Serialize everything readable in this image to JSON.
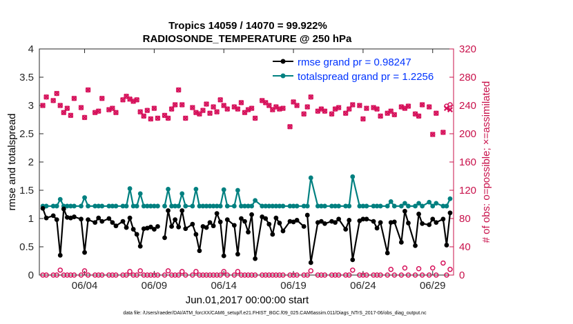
{
  "chart_data": {
    "type": "line",
    "title": "Tropics 14059 / 14070 = 99.922%",
    "subtitle": "RADIOSONDE_TEMPERATURE @ 250 hPa",
    "xlabel": "Jun.01,2017 00:00:00 start",
    "ylabel": "rmse and totalspread",
    "y2label": "# of obs: o=possible; ×=assimilated",
    "footer": "data file: /Users/raeder/DAI/ATM_forcXX/CAM6_setup/f.e21.FHIST_BGC.f09_025.CAM6assim.011/Diags_NTrS_2017-06/obs_diag_output.nc",
    "xlim": [
      0.75,
      30.5
    ],
    "ylim": [
      0,
      4
    ],
    "y2lim": [
      0,
      320
    ],
    "x_tick_values": [
      4,
      9,
      14,
      19,
      24,
      29
    ],
    "x_tick_labels": [
      "06/04",
      "06/09",
      "06/14",
      "06/19",
      "06/24",
      "06/29"
    ],
    "y_tick_values": [
      0,
      0.5,
      1,
      1.5,
      2,
      2.5,
      3,
      3.5,
      4
    ],
    "y_tick_labels": [
      "0",
      "0.5",
      "1",
      "1.5",
      "2",
      "2.5",
      "3",
      "3.5",
      "4"
    ],
    "y2_tick_values": [
      0,
      40,
      80,
      120,
      160,
      200,
      240,
      280,
      320
    ],
    "y2_tick_labels": [
      "0",
      "40",
      "80",
      "120",
      "160",
      "200",
      "240",
      "280",
      "320"
    ],
    "legend_position": "top-right",
    "colors": {
      "rmse": "#000000",
      "spread": "#008080",
      "obs": "#d6105a",
      "right_axis": "#c8104a",
      "legend_text": "#0033ff"
    },
    "series": [
      {
        "name": "rmse",
        "legend": "rmse grand pr = 0.98247",
        "axis": "left",
        "x": [
          1.0,
          1.25,
          1.75,
          2.0,
          2.25,
          2.5,
          2.75,
          3.0,
          3.25,
          3.75,
          4.0,
          4.25,
          4.75,
          5.0,
          5.25,
          5.75,
          6.0,
          6.25,
          6.75,
          7.0,
          7.25,
          7.5,
          7.75,
          8.0,
          8.25,
          8.5,
          8.75,
          9.0,
          9.25,
          9.75,
          10.0,
          10.25,
          10.5,
          10.75,
          11.0,
          11.25,
          11.75,
          12.0,
          12.25,
          12.5,
          12.75,
          13.0,
          13.25,
          13.5,
          13.75,
          14.0,
          14.25,
          14.75,
          15.0,
          15.25,
          15.5,
          15.75,
          16.0,
          16.25,
          16.75,
          17.0,
          17.25,
          17.5,
          17.75,
          18.0,
          18.25,
          18.75,
          19.0,
          19.25,
          19.75,
          20.0,
          20.25,
          20.75,
          21.0,
          21.25,
          21.75,
          22.0,
          22.25,
          22.75,
          23.0,
          23.25,
          23.75,
          24.0,
          24.25,
          24.75,
          25.0,
          25.25,
          25.75,
          26.0,
          26.25,
          26.75,
          27.0,
          27.25,
          27.75,
          28.0,
          28.25,
          28.75,
          29.0,
          29.25,
          29.75,
          30.0,
          30.25
        ],
        "values": [
          1.18,
          1.01,
          1.05,
          0.98,
          0.35,
          1.17,
          1.02,
          1.01,
          1.03,
          0.99,
          0.4,
          0.98,
          0.93,
          1.01,
          0.95,
          1.0,
          0.93,
          0.87,
          0.95,
          0.84,
          1.01,
          0.81,
          0.72,
          0.51,
          0.82,
          0.83,
          0.85,
          0.81,
          0.86,
          0.66,
          1.14,
          0.86,
          0.98,
          0.85,
          1.14,
          0.82,
          0.9,
          0.72,
          0.43,
          0.86,
          0.84,
          0.93,
          0.87,
          1.09,
          0.94,
          0.34,
          0.98,
          0.88,
          0.37,
          1.0,
          0.95,
          0.76,
          1.07,
          0.29,
          1.03,
          1.0,
          0.9,
          0.72,
          1.01,
          0.92,
          0.78,
          0.95,
          0.94,
          0.97,
          0.86,
          1.06,
          0.22,
          0.93,
          0.95,
          0.91,
          0.95,
          0.93,
          0.99,
          0.81,
          0.97,
          0.27,
          0.96,
          0.99,
          0.99,
          0.95,
          0.83,
          0.93,
          0.39,
          0.93,
          0.94,
          0.58,
          1.13,
          0.92,
          0.52,
          1.08,
          0.91,
          0.89,
          0.99,
          0.93,
          0.99,
          0.53,
          1.1
        ],
        "line_segments": [
          [
            0,
            28
          ],
          [
            29,
            64
          ],
          [
            65,
            96
          ]
        ]
      },
      {
        "name": "totalspread",
        "legend": "totalspread grand pr = 1.2256",
        "axis": "left",
        "x": [
          1.0,
          1.25,
          1.75,
          2.0,
          2.25,
          2.5,
          2.75,
          3.0,
          3.25,
          3.75,
          4.0,
          4.25,
          4.75,
          5.0,
          5.25,
          5.75,
          6.0,
          6.25,
          6.75,
          7.0,
          7.25,
          7.5,
          7.75,
          8.0,
          8.25,
          8.5,
          8.75,
          9.0,
          9.25,
          9.75,
          10.0,
          10.25,
          10.5,
          10.75,
          11.0,
          11.25,
          11.75,
          12.0,
          12.25,
          12.5,
          12.75,
          13.0,
          13.25,
          13.5,
          13.75,
          14.0,
          14.25,
          14.75,
          15.0,
          15.25,
          15.5,
          15.75,
          16.0,
          16.25,
          16.75,
          17.0,
          17.25,
          17.5,
          17.75,
          18.0,
          18.25,
          18.75,
          19.0,
          19.25,
          19.75,
          20.0,
          20.25,
          20.75,
          21.0,
          21.25,
          21.75,
          22.0,
          22.25,
          22.75,
          23.0,
          23.25,
          23.75,
          24.0,
          24.25,
          24.75,
          25.0,
          25.25,
          25.75,
          26.0,
          26.25,
          26.75,
          27.0,
          27.25,
          27.75,
          28.0,
          28.25,
          28.75,
          29.0,
          29.25,
          29.75,
          30.0,
          30.25
        ],
        "values": [
          1.22,
          1.22,
          1.22,
          1.22,
          1.34,
          1.22,
          1.22,
          1.22,
          1.22,
          1.22,
          1.37,
          1.22,
          1.22,
          1.22,
          1.22,
          1.22,
          1.22,
          1.22,
          1.22,
          1.22,
          1.53,
          1.22,
          1.22,
          1.44,
          1.22,
          1.22,
          1.22,
          1.22,
          1.22,
          1.22,
          1.52,
          1.22,
          1.22,
          1.22,
          1.44,
          1.22,
          1.22,
          1.52,
          1.22,
          1.22,
          1.22,
          1.22,
          1.22,
          1.22,
          1.22,
          1.51,
          1.22,
          1.22,
          1.5,
          1.22,
          1.22,
          1.22,
          1.22,
          1.32,
          1.22,
          1.22,
          1.22,
          1.22,
          1.22,
          1.22,
          1.22,
          1.22,
          1.22,
          1.22,
          1.22,
          1.22,
          1.72,
          1.22,
          1.22,
          1.22,
          1.22,
          1.22,
          1.22,
          1.22,
          1.22,
          1.74,
          1.22,
          1.22,
          1.22,
          1.22,
          1.22,
          1.22,
          1.22,
          1.3,
          1.22,
          1.22,
          1.27,
          1.22,
          1.22,
          1.27,
          1.22,
          1.29,
          1.22,
          1.27,
          1.22,
          1.22,
          1.35
        ],
        "line_segments": [
          [
            0,
            28
          ],
          [
            29,
            64
          ],
          [
            65,
            96
          ]
        ]
      },
      {
        "name": "obs possible",
        "legend": "",
        "axis": "right",
        "marker": "circle",
        "x": [
          1.0,
          1.25,
          1.75,
          2.0,
          2.25,
          2.5,
          2.75,
          3.0,
          3.25,
          3.75,
          4.0,
          4.25,
          4.75,
          5.0,
          5.25,
          5.75,
          6.0,
          6.25,
          6.75,
          7.0,
          7.25,
          7.5,
          7.75,
          8.0,
          8.25,
          8.5,
          8.75,
          9.0,
          9.25,
          9.75,
          10.0,
          10.25,
          10.5,
          10.75,
          11.0,
          11.25,
          11.75,
          12.0,
          12.25,
          12.5,
          12.75,
          13.0,
          13.25,
          13.5,
          13.75,
          14.0,
          14.25,
          14.75,
          15.0,
          15.25,
          15.5,
          15.75,
          16.0,
          16.25,
          16.75,
          17.0,
          17.25,
          17.5,
          17.75,
          18.0,
          18.25,
          18.75,
          19.0,
          19.25,
          19.75,
          20.0,
          20.25,
          20.75,
          21.0,
          21.25,
          21.75,
          22.0,
          22.25,
          22.75,
          23.0,
          23.25,
          23.75,
          24.0,
          24.25,
          24.75,
          25.0,
          25.25,
          25.75,
          26.0,
          26.25,
          26.75,
          27.0,
          27.25,
          27.75,
          28.0,
          28.25,
          28.75,
          29.0,
          29.25,
          29.75,
          30.0,
          30.25
        ],
        "values": [
          240,
          252,
          247,
          257,
          240,
          230,
          236,
          226,
          250,
          237,
          223,
          262,
          230,
          232,
          250,
          234,
          236,
          230,
          248,
          253,
          249,
          246,
          248,
          231,
          225,
          233,
          221,
          236,
          222,
          226,
          222,
          235,
          241,
          262,
          241,
          222,
          237,
          230,
          228,
          233,
          242,
          229,
          238,
          231,
          248,
          240,
          235,
          238,
          235,
          244,
          230,
          234,
          236,
          222,
          247,
          244,
          240,
          234,
          238,
          235,
          236,
          210,
          245,
          240,
          228,
          238,
          252,
          232,
          235,
          232,
          228,
          235,
          237,
          229,
          235,
          241,
          240,
          221,
          236,
          237,
          235,
          225,
          229,
          232,
          227,
          238,
          236,
          239,
          228,
          225,
          241,
          238,
          199,
          229,
          202,
          239,
          241
        ],
        "marker_note": "obs possible drawn as circles"
      },
      {
        "name": "obs assimilated",
        "legend": "",
        "axis": "right",
        "marker": "x",
        "x": [
          1.0,
          1.25,
          1.75,
          2.0,
          2.25,
          2.5,
          2.75,
          3.0,
          3.25,
          3.75,
          4.0,
          4.25,
          4.75,
          5.0,
          5.25,
          5.75,
          6.0,
          6.25,
          6.75,
          7.0,
          7.25,
          7.5,
          7.75,
          8.0,
          8.25,
          8.5,
          8.75,
          9.0,
          9.25,
          9.75,
          10.0,
          10.25,
          10.5,
          10.75,
          11.0,
          11.25,
          11.75,
          12.0,
          12.25,
          12.5,
          12.75,
          13.0,
          13.25,
          13.5,
          13.75,
          14.0,
          14.25,
          14.75,
          15.0,
          15.25,
          15.5,
          15.75,
          16.0,
          16.25,
          16.75,
          17.0,
          17.25,
          17.5,
          17.75,
          18.0,
          18.25,
          18.75,
          19.0,
          19.25,
          19.75,
          20.0,
          20.25,
          20.75,
          21.0,
          21.25,
          21.75,
          22.0,
          22.25,
          22.75,
          23.0,
          23.25,
          23.75,
          24.0,
          24.25,
          24.75,
          25.0,
          25.25,
          25.75,
          26.0,
          26.25,
          26.75,
          27.0,
          27.25,
          27.75,
          28.0,
          28.25,
          28.75,
          29.0,
          29.25,
          29.75,
          30.0,
          30.25
        ],
        "values": [
          240,
          252,
          247,
          257,
          240,
          230,
          236,
          226,
          250,
          237,
          223,
          262,
          230,
          232,
          250,
          234,
          236,
          230,
          248,
          253,
          249,
          246,
          248,
          231,
          225,
          233,
          221,
          236,
          222,
          226,
          222,
          235,
          241,
          262,
          241,
          222,
          237,
          230,
          228,
          233,
          242,
          229,
          238,
          231,
          248,
          240,
          235,
          238,
          235,
          244,
          230,
          234,
          236,
          222,
          247,
          244,
          240,
          234,
          238,
          235,
          236,
          210,
          245,
          240,
          228,
          238,
          252,
          232,
          235,
          232,
          228,
          235,
          237,
          229,
          235,
          241,
          240,
          221,
          236,
          237,
          235,
          225,
          229,
          232,
          227,
          238,
          236,
          239,
          228,
          225,
          241,
          238,
          199,
          229,
          202,
          236,
          234
        ]
      },
      {
        "name": "rejected obs possible",
        "legend": "",
        "axis": "right",
        "marker": "circle",
        "x": [
          1.0,
          1.25,
          1.75,
          2.0,
          2.25,
          2.5,
          2.75,
          3.0,
          3.25,
          3.75,
          4.0,
          4.25,
          4.75,
          5.0,
          5.25,
          5.75,
          6.0,
          6.25,
          6.75,
          7.0,
          7.25,
          7.5,
          7.75,
          8.0,
          8.25,
          8.5,
          8.75,
          9.0,
          9.25,
          9.75,
          10.0,
          10.25,
          10.5,
          10.75,
          11.0,
          11.25,
          11.75,
          12.0,
          12.25,
          12.5,
          12.75,
          13.0,
          13.25,
          13.5,
          13.75,
          14.0,
          14.25,
          14.75,
          15.0,
          15.25,
          15.5,
          15.75,
          16.0,
          16.25,
          16.75,
          17.0,
          17.25,
          17.5,
          17.75,
          18.0,
          18.25,
          18.75,
          19.0,
          19.25,
          19.75,
          20.0,
          20.25,
          20.75,
          21.0,
          21.25,
          21.75,
          22.0,
          22.25,
          22.75,
          23.0,
          23.25,
          23.75,
          24.0,
          24.25,
          24.75,
          25.0,
          25.25,
          25.75,
          26.0,
          26.25,
          26.75,
          27.0,
          27.25,
          27.75,
          28.0,
          28.25,
          28.75,
          29.0,
          29.25,
          29.75,
          30.0,
          30.25
        ],
        "values": [
          0,
          0,
          0,
          0,
          7,
          0,
          0,
          0,
          0,
          0,
          6,
          0,
          0,
          0,
          0,
          0,
          0,
          0,
          0,
          0,
          5,
          0,
          0,
          6,
          0,
          0,
          0,
          0,
          0,
          0,
          6,
          0,
          0,
          0,
          5,
          0,
          0,
          5,
          0,
          0,
          0,
          0,
          0,
          0,
          0,
          5,
          0,
          0,
          5,
          0,
          0,
          0,
          0,
          0,
          0,
          0,
          0,
          0,
          0,
          0,
          0,
          0,
          0,
          0,
          0,
          0,
          6,
          0,
          0,
          0,
          0,
          0,
          0,
          0,
          0,
          7,
          0,
          0,
          0,
          0,
          0,
          0,
          0,
          8,
          0,
          0,
          10,
          0,
          0,
          9,
          0,
          0,
          10,
          0,
          17,
          0,
          8
        ]
      }
    ]
  }
}
